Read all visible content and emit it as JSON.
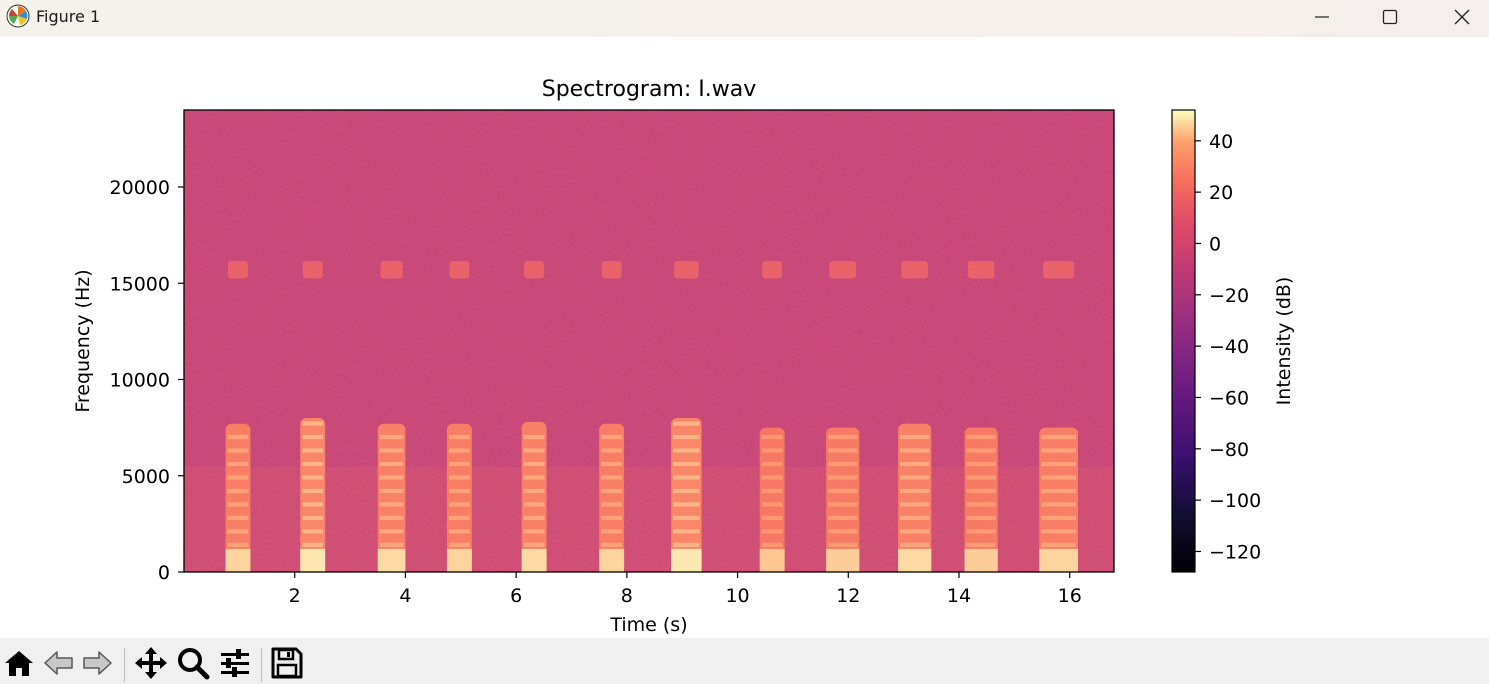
{
  "window": {
    "title": "Figure 1",
    "app_icon": "matplotlib-icon",
    "controls": [
      "minimize-icon",
      "maximize-icon",
      "close-icon"
    ]
  },
  "toolbar": {
    "tools": [
      "home-icon",
      "back-arrow-icon",
      "forward-arrow-icon",
      "pan-move-icon",
      "zoom-magnifier-icon",
      "configure-sliders-icon",
      "save-floppy-icon"
    ]
  },
  "chart_data": {
    "type": "heatmap",
    "title": "Spectrogram: I.wav",
    "xlabel": "Time (s)",
    "ylabel": "Frequency (Hz)",
    "xlim": [
      0,
      16.8
    ],
    "ylim": [
      0,
      24000
    ],
    "x_ticks": [
      2,
      4,
      6,
      8,
      10,
      12,
      14,
      16
    ],
    "y_ticks": [
      0,
      5000,
      10000,
      15000,
      20000
    ],
    "x_tick_labels": [
      "2",
      "4",
      "6",
      "8",
      "10",
      "12",
      "14",
      "16"
    ],
    "y_tick_labels": [
      "0",
      "5000",
      "10000",
      "15000",
      "20000"
    ],
    "colormap": "magma",
    "colorbar": {
      "label": "Intensity (dB)",
      "range": [
        -128,
        52
      ],
      "ticks": [
        40,
        20,
        0,
        -20,
        -40,
        -60,
        -80,
        -100,
        -120
      ],
      "tick_labels": [
        "40",
        "20",
        "0",
        "−20",
        "−40",
        "−60",
        "−80",
        "−100",
        "−120"
      ]
    },
    "background_level_db": -8,
    "speech_bursts": [
      {
        "start": 0.75,
        "end": 1.2,
        "max_freq": 7700,
        "level_db": 35
      },
      {
        "start": 2.1,
        "end": 2.55,
        "max_freq": 8000,
        "level_db": 38
      },
      {
        "start": 3.5,
        "end": 4.0,
        "max_freq": 7700,
        "level_db": 36
      },
      {
        "start": 4.75,
        "end": 5.2,
        "max_freq": 7700,
        "level_db": 35
      },
      {
        "start": 6.1,
        "end": 6.55,
        "max_freq": 7800,
        "level_db": 36
      },
      {
        "start": 7.5,
        "end": 7.95,
        "max_freq": 7700,
        "level_db": 35
      },
      {
        "start": 8.8,
        "end": 9.35,
        "max_freq": 8000,
        "level_db": 38
      },
      {
        "start": 10.4,
        "end": 10.85,
        "max_freq": 7500,
        "level_db": 33
      },
      {
        "start": 11.6,
        "end": 12.2,
        "max_freq": 7500,
        "level_db": 34
      },
      {
        "start": 12.9,
        "end": 13.5,
        "max_freq": 7700,
        "level_db": 36
      },
      {
        "start": 14.1,
        "end": 14.7,
        "max_freq": 7500,
        "level_db": 34
      },
      {
        "start": 15.45,
        "end": 16.15,
        "max_freq": 7500,
        "level_db": 35
      }
    ],
    "high_band": {
      "center_freq": 15700,
      "level_db": 14
    }
  }
}
